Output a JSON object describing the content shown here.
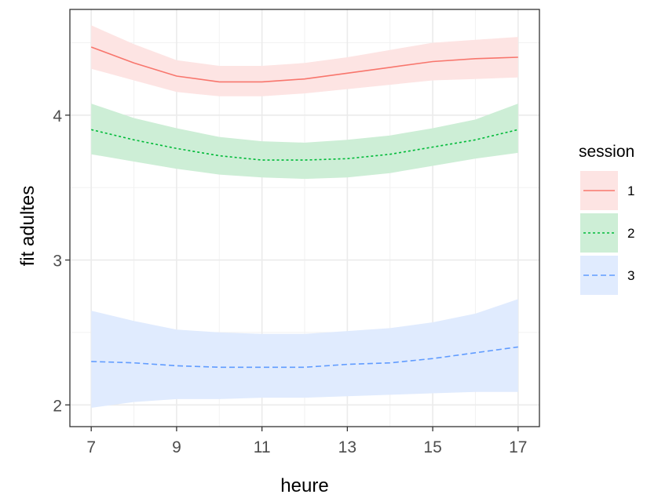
{
  "chart_data": {
    "type": "line",
    "xlabel": "heure",
    "ylabel": "fit adultes",
    "xlim": [
      6.5,
      17.5
    ],
    "ylim": [
      1.85,
      4.73
    ],
    "x_ticks": [
      7,
      9,
      11,
      13,
      15,
      17
    ],
    "y_ticks": [
      2,
      3,
      4
    ],
    "grid": true,
    "legend": {
      "title": "session",
      "position": "right"
    },
    "x": [
      7,
      8,
      9,
      10,
      11,
      12,
      13,
      14,
      15,
      16,
      17
    ],
    "series": [
      {
        "name": "1",
        "color": "#F8766D",
        "linestyle": "solid",
        "values": [
          4.47,
          4.36,
          4.27,
          4.23,
          4.23,
          4.25,
          4.29,
          4.33,
          4.37,
          4.39,
          4.4
        ],
        "lower": [
          4.32,
          4.24,
          4.16,
          4.13,
          4.13,
          4.15,
          4.18,
          4.21,
          4.24,
          4.25,
          4.26
        ],
        "upper": [
          4.62,
          4.49,
          4.38,
          4.34,
          4.34,
          4.36,
          4.4,
          4.45,
          4.5,
          4.52,
          4.54
        ]
      },
      {
        "name": "2",
        "color": "#00BA38",
        "linestyle": "dotted",
        "values": [
          3.9,
          3.83,
          3.77,
          3.72,
          3.69,
          3.69,
          3.7,
          3.73,
          3.78,
          3.83,
          3.9
        ],
        "lower": [
          3.73,
          3.68,
          3.63,
          3.59,
          3.57,
          3.56,
          3.57,
          3.6,
          3.65,
          3.7,
          3.74
        ],
        "upper": [
          4.08,
          3.98,
          3.91,
          3.85,
          3.82,
          3.81,
          3.83,
          3.86,
          3.91,
          3.97,
          4.08
        ]
      },
      {
        "name": "3",
        "color": "#619CFF",
        "linestyle": "dashed",
        "values": [
          2.3,
          2.29,
          2.27,
          2.26,
          2.26,
          2.26,
          2.28,
          2.29,
          2.32,
          2.36,
          2.4
        ],
        "lower": [
          1.98,
          2.02,
          2.04,
          2.04,
          2.05,
          2.05,
          2.06,
          2.07,
          2.08,
          2.09,
          2.09
        ],
        "upper": [
          2.65,
          2.58,
          2.52,
          2.5,
          2.49,
          2.49,
          2.51,
          2.53,
          2.57,
          2.63,
          2.73
        ]
      }
    ]
  }
}
